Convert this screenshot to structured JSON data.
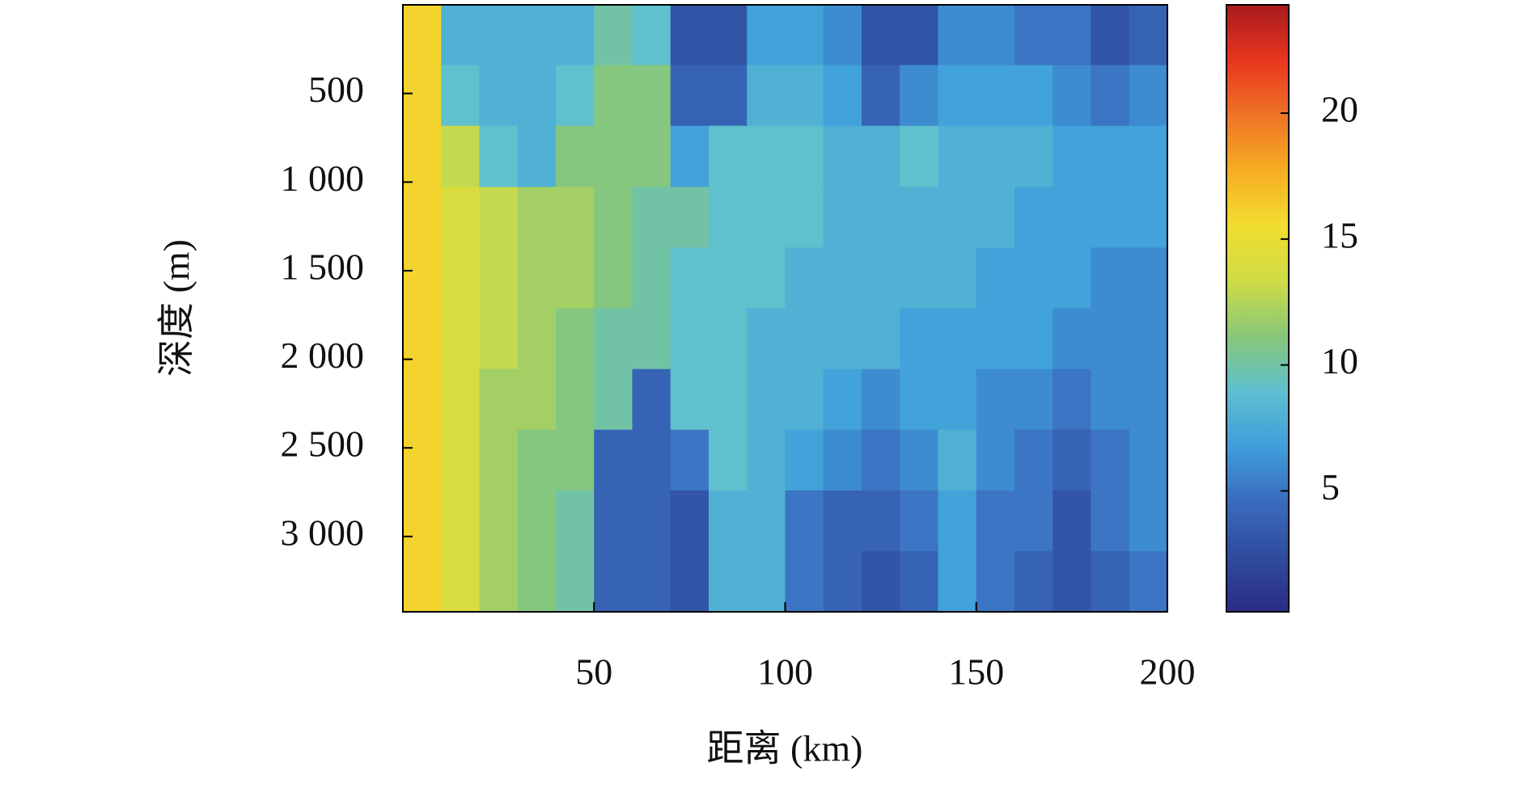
{
  "chart_data": {
    "type": "heatmap",
    "x_label": "距离 (km)",
    "y_label": "深度 (m)",
    "x": [
      5,
      15,
      25,
      35,
      45,
      55,
      65,
      75,
      85,
      95,
      105,
      115,
      125,
      135,
      145,
      155,
      165,
      175,
      185,
      195
    ],
    "y": [
      170,
      510,
      855,
      1200,
      1540,
      1885,
      2225,
      2570,
      2910,
      3255
    ],
    "z": [
      [
        16,
        8,
        8,
        8,
        8,
        10,
        9,
        3,
        3,
        7,
        7,
        6,
        3,
        3,
        6,
        6,
        5,
        5,
        3,
        4
      ],
      [
        16,
        9,
        8,
        8,
        9,
        11,
        11,
        4,
        4,
        8,
        8,
        7,
        4,
        6,
        7,
        7,
        7,
        6,
        5,
        6
      ],
      [
        16,
        13,
        9,
        8,
        11,
        11,
        11,
        7,
        9,
        9,
        9,
        8,
        8,
        9,
        8,
        8,
        8,
        7,
        7,
        7
      ],
      [
        16,
        14,
        13,
        12,
        12,
        11,
        10,
        10,
        9,
        9,
        9,
        8,
        8,
        8,
        8,
        8,
        7,
        7,
        7,
        7
      ],
      [
        16,
        14,
        13,
        12,
        12,
        11,
        10,
        9,
        9,
        9,
        8,
        8,
        8,
        8,
        8,
        7,
        7,
        7,
        6,
        6
      ],
      [
        16,
        14,
        13,
        12,
        11,
        10,
        10,
        9,
        9,
        8,
        8,
        8,
        8,
        7,
        7,
        7,
        7,
        6,
        6,
        6
      ],
      [
        16,
        14,
        12,
        12,
        11,
        10,
        4,
        9,
        9,
        8,
        8,
        7,
        6,
        7,
        7,
        6,
        6,
        5,
        6,
        6
      ],
      [
        16,
        14,
        12,
        11,
        11,
        4,
        4,
        5,
        9,
        8,
        7,
        6,
        5,
        6,
        8,
        6,
        5,
        4,
        5,
        6
      ],
      [
        16,
        14,
        12,
        11,
        10,
        4,
        4,
        3,
        8,
        8,
        5,
        4,
        4,
        5,
        7,
        5,
        5,
        3,
        5,
        6
      ],
      [
        16,
        14,
        12,
        11,
        10,
        4,
        4,
        3,
        8,
        8,
        5,
        4,
        3,
        4,
        7,
        5,
        4,
        3,
        4,
        5
      ]
    ],
    "xlim": [
      0,
      200
    ],
    "xticks": [
      50,
      100,
      150,
      200
    ],
    "ylim": [
      0,
      3425
    ],
    "y_inverted": true,
    "yticks": [
      500,
      {
        "value": 1000,
        "label": "1 000"
      },
      {
        "value": 1500,
        "label": "1 500"
      },
      {
        "value": 2000,
        "label": "2 000"
      },
      {
        "value": 2500,
        "label": "2 500"
      },
      {
        "value": 3000,
        "label": "3 000"
      }
    ],
    "clim": [
      0.2,
      24.3
    ],
    "cticks": [
      5,
      10,
      15,
      20
    ],
    "colormap": [
      "#2b2b86",
      "#2f4c9e",
      "#3a6bbd",
      "#3f9edb",
      "#5ec0cf",
      "#88c779",
      "#cfdc45",
      "#f2dd30",
      "#f6ad22",
      "#ef7326",
      "#e8351f",
      "#a81b1b"
    ]
  }
}
